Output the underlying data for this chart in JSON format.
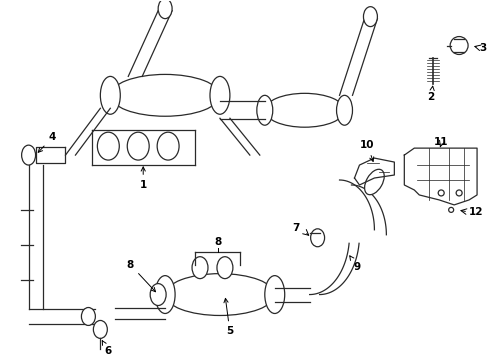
{
  "bg_color": "#ffffff",
  "line_color": "#2a2a2a",
  "fig_width": 4.89,
  "fig_height": 3.6,
  "dpi": 100,
  "font_size": 7.5
}
